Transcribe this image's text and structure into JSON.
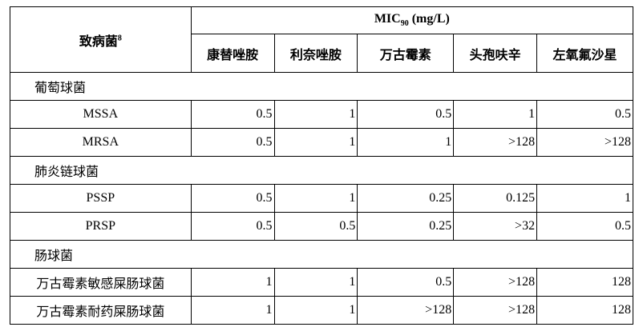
{
  "header": {
    "pathogen": {
      "text": "致病菌",
      "superscript": "8"
    },
    "mic": {
      "text": "MIC",
      "subscript": "90",
      "unit": "(mg/L)"
    },
    "columns": [
      "康替唑胺",
      "利奈唑胺",
      "万古霉素",
      "头孢呋辛",
      "左氧氟沙星"
    ]
  },
  "rows": [
    {
      "group": "葡萄球菌"
    },
    {
      "name": "MSSA",
      "values": [
        "0.5",
        "1",
        "0.5",
        "1",
        "0.5"
      ]
    },
    {
      "name": "MRSA",
      "values": [
        "0.5",
        "1",
        "1",
        ">128",
        ">128"
      ]
    },
    {
      "group": "肺炎链球菌"
    },
    {
      "name": "PSSP",
      "values": [
        "0.5",
        "1",
        "0.25",
        "0.125",
        "1"
      ]
    },
    {
      "name": "PRSP",
      "values": [
        "0.5",
        "0.5",
        "0.25",
        ">32",
        "0.5"
      ]
    },
    {
      "group": "肠球菌"
    },
    {
      "name": "万古霉素敏感屎肠球菌",
      "values": [
        "1",
        "1",
        "0.5",
        ">128",
        "128"
      ]
    },
    {
      "name": "万古霉素耐药屎肠球菌",
      "values": [
        "1",
        "1",
        ">128",
        ">128",
        "128"
      ]
    }
  ]
}
